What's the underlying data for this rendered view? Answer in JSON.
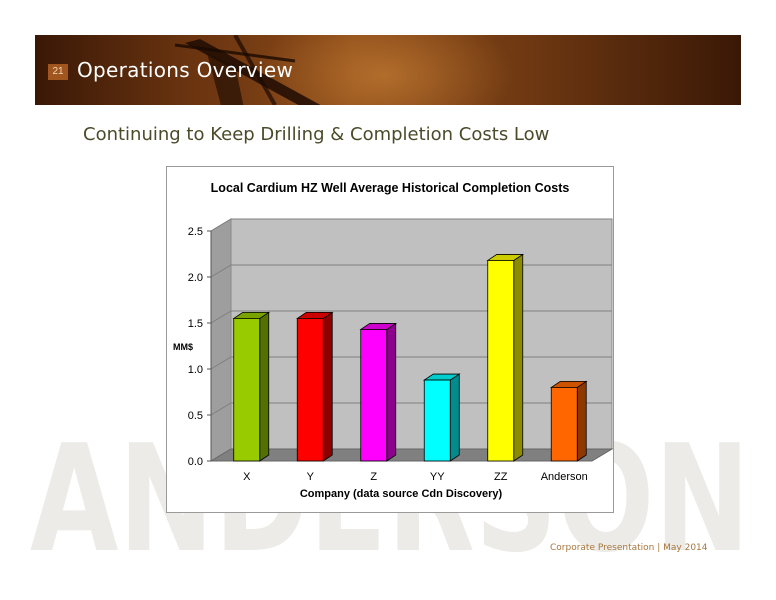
{
  "slide": {
    "number": "21",
    "title": "Operations Overview",
    "subtitle": "Continuing to Keep Drilling & Completion Costs Low",
    "watermark_text": "ANDERSON",
    "footer": "Corporate Presentation  |  May 2014"
  },
  "colors": {
    "banner_dark": "#3a1806",
    "banner_mid": "#8a4a18",
    "subtitle": "#4b4b2a",
    "footer": "#a8773e",
    "wall": "#c0c0c0",
    "floor": "#808080"
  },
  "chart_data": {
    "type": "bar",
    "title": "Local Cardium HZ Well Average Historical Completion Costs",
    "xlabel": "Company (data source Cdn Discovery)",
    "ylabel": "MM$",
    "ylim": [
      0,
      2.5
    ],
    "yticks": [
      "0.0",
      "0.5",
      "1.0",
      "1.5",
      "2.0",
      "2.5"
    ],
    "grid": true,
    "legend": false,
    "style": "3d-column",
    "categories": [
      "X",
      "Y",
      "Z",
      "YY",
      "ZZ",
      "Anderson"
    ],
    "values": [
      1.55,
      1.55,
      1.43,
      0.88,
      2.18,
      0.8
    ],
    "bar_colors": [
      "#99cc00",
      "#ff0000",
      "#ff00ff",
      "#00ffff",
      "#ffff00",
      "#ff6600"
    ]
  }
}
